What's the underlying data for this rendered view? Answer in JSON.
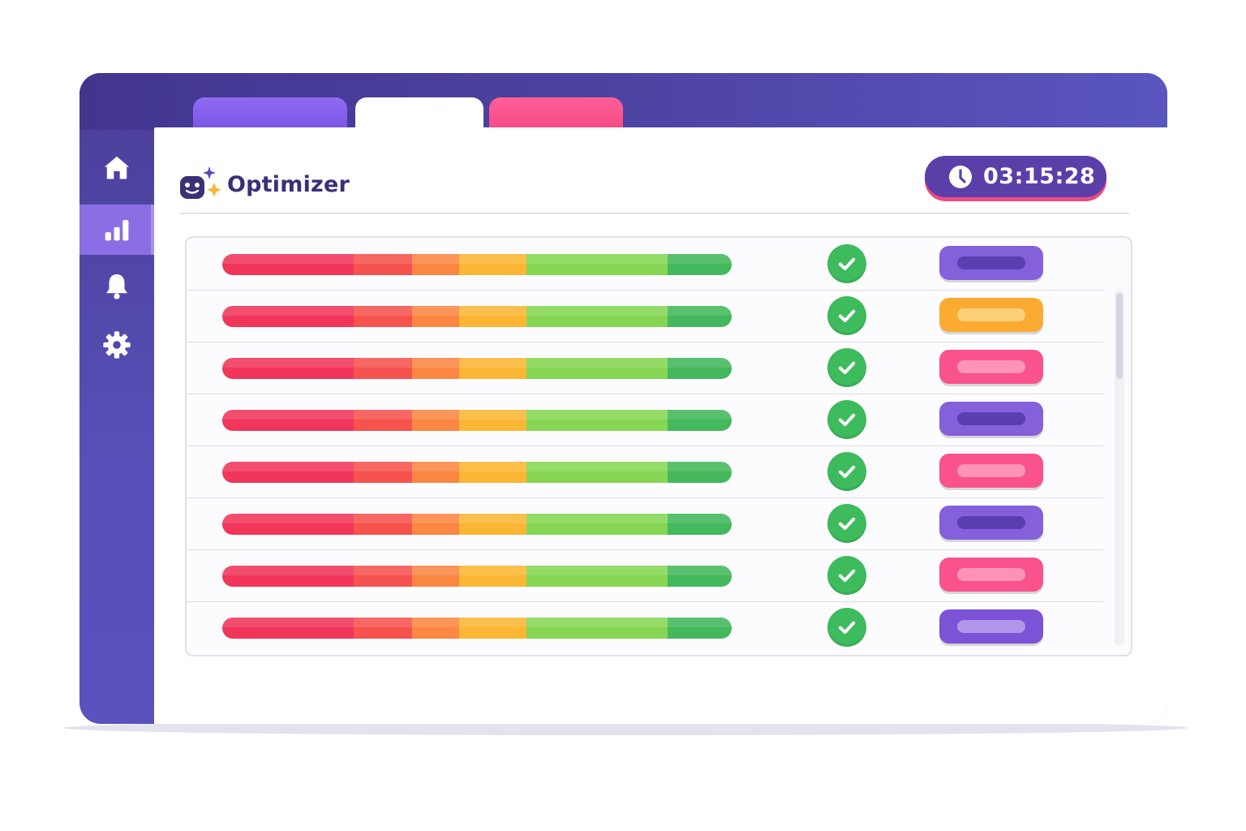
{
  "app": {
    "title": "Optimizer"
  },
  "timer": {
    "value": "03:15:28"
  },
  "tabs": [
    {
      "color": "#7f5ae8"
    },
    {
      "color": "#ffffff"
    },
    {
      "color": "#f84d89"
    }
  ],
  "sidebar": {
    "items": [
      {
        "icon": "home-icon",
        "active": false
      },
      {
        "icon": "bar-chart-icon",
        "active": true
      },
      {
        "icon": "bell-icon",
        "active": false
      },
      {
        "icon": "gear-icon",
        "active": false
      }
    ]
  },
  "colors": {
    "sidebar": "#4f45a8",
    "accent": "#5b3fa9",
    "check": "#3dbb5d",
    "bar_segments": [
      "#f2355a",
      "#f6534f",
      "#fb8742",
      "#fbb734",
      "#86d653",
      "#43b85c"
    ]
  },
  "rows": [
    {
      "status": "done",
      "pill_color": "#8460db",
      "pill_inner": "#5a3fb0"
    },
    {
      "status": "done",
      "pill_color": "#fbab31",
      "pill_inner": "#fdd078"
    },
    {
      "status": "done",
      "pill_color": "#f9528d",
      "pill_inner": "#fd93b6"
    },
    {
      "status": "done",
      "pill_color": "#8460db",
      "pill_inner": "#5a3fb0"
    },
    {
      "status": "done",
      "pill_color": "#f9528d",
      "pill_inner": "#fd93b6"
    },
    {
      "status": "done",
      "pill_color": "#8460db",
      "pill_inner": "#5a3fb0"
    },
    {
      "status": "done",
      "pill_color": "#f9528d",
      "pill_inner": "#fd93b6"
    },
    {
      "status": "done",
      "pill_color": "#7c52d6",
      "pill_inner": "#b196ea"
    }
  ]
}
